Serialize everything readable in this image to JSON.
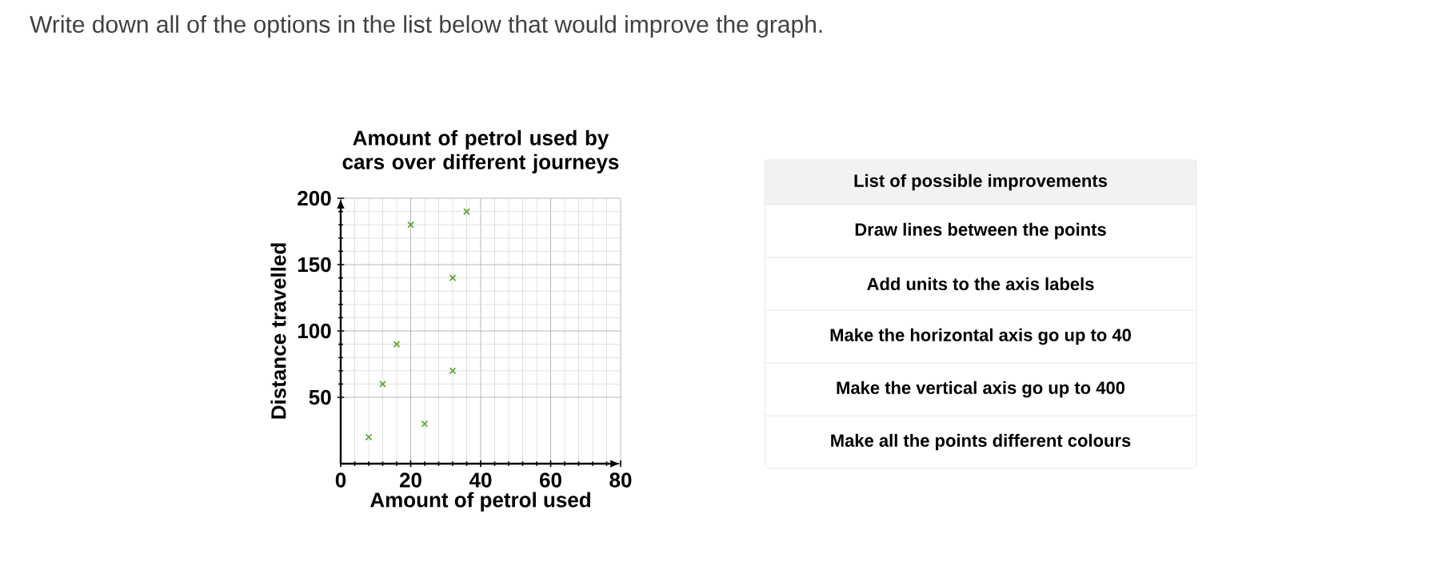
{
  "chart_data": [
    {
      "type": "scatter",
      "title": "Amount of petrol used by cars over different journeys",
      "xlabel": "Amount of petrol used",
      "ylabel": "Distance travelled",
      "annotations": [
        "Write down all of the options in the list below that would improve the graph."
      ],
      "x": [
        8,
        12,
        16,
        20,
        24,
        32,
        32,
        36
      ],
      "values": [
        20,
        60,
        90,
        180,
        30,
        140,
        70,
        190
      ],
      "color": "#5aa02c",
      "marker": "cross",
      "xlim": [
        0,
        80
      ],
      "ylim": [
        0,
        200
      ],
      "xticks": [
        0,
        20,
        40,
        60,
        80
      ],
      "yticks": [
        50,
        100,
        150,
        200
      ],
      "grid": true
    },
    {
      "type": "other",
      "title": "List of possible improvements",
      "annotations": [
        "Draw lines between the points",
        "Add units to the axis labels",
        "Make the horizontal axis go up to 40",
        "Make the vertical axis go up to 400",
        "Make all the points different colours"
      ]
    }
  ]
}
